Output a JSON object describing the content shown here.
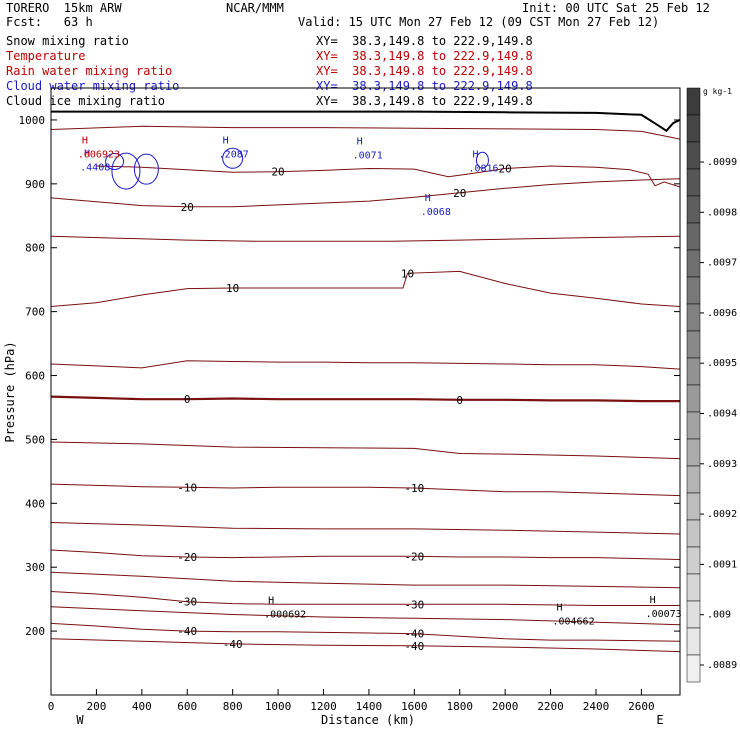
{
  "header": {
    "model": "TORERO  15km ARW",
    "source": "NCAR/MMM",
    "init": "Init: 00 UTC Sat 25 Feb 12",
    "fcst": "Fcst:   63 h",
    "valid": "Valid: 15 UTC Mon 27 Feb 12 (09 CST Mon 27 Feb 12)"
  },
  "fields": [
    {
      "label": "Snow mixing ratio",
      "color": "#000000",
      "xy": "XY=  38.3,149.8 to 222.9,149.8"
    },
    {
      "label": "Temperature",
      "color": "#c00000",
      "xy": "XY=  38.3,149.8 to 222.9,149.8"
    },
    {
      "label": "Rain water mixing ratio",
      "color": "#c00000",
      "xy": "XY=  38.3,149.8 to 222.9,149.8"
    },
    {
      "label": "Cloud water mixing ratio",
      "color": "#1a1acc",
      "xy": "XY=  38.3,149.8 to 222.9,149.8"
    },
    {
      "label": "Cloud ice mixing ratio",
      "color": "#000000",
      "xy": "XY=  38.3,149.8 to 222.9,149.8"
    }
  ],
  "chart_data": {
    "type": "contour",
    "xlabel": "Distance (km)",
    "ylabel": "Pressure (hPa)",
    "xlim": [
      0,
      2770
    ],
    "ylim": [
      1050,
      100
    ],
    "x_ticks": [
      0,
      200,
      400,
      600,
      800,
      1000,
      1200,
      1400,
      1600,
      1800,
      2000,
      2200,
      2400,
      2600
    ],
    "y_ticks": [
      200,
      300,
      400,
      500,
      600,
      700,
      800,
      900,
      1000
    ],
    "x_end_labels": {
      "left": "W",
      "right": "E"
    },
    "colors": {
      "temperature": "#7a1010",
      "cloud_water": "#1a1acc",
      "terrain": "#000000"
    },
    "temperature_contours": [
      {
        "level": -40,
        "label": "-40",
        "points": [
          [
            0,
            188
          ],
          [
            400,
            184
          ],
          [
            800,
            180
          ],
          [
            1200,
            178
          ],
          [
            1600,
            177
          ],
          [
            2000,
            175
          ],
          [
            2400,
            172
          ],
          [
            2770,
            168
          ]
        ]
      },
      {
        "level": -40,
        "label": "-40",
        "points": [
          [
            0,
            212
          ],
          [
            200,
            208
          ],
          [
            400,
            203
          ],
          [
            600,
            200
          ],
          [
            800,
            199
          ],
          [
            1000,
            199
          ],
          [
            1200,
            198
          ],
          [
            1400,
            197
          ],
          [
            1600,
            196
          ],
          [
            1800,
            192
          ],
          [
            2000,
            188
          ],
          [
            2200,
            186
          ],
          [
            2400,
            186
          ],
          [
            2770,
            184
          ]
        ]
      },
      {
        "level": -35,
        "label": "",
        "points": [
          [
            0,
            238
          ],
          [
            400,
            232
          ],
          [
            800,
            226
          ],
          [
            1200,
            222
          ],
          [
            1600,
            220
          ],
          [
            2000,
            218
          ],
          [
            2400,
            214
          ],
          [
            2770,
            210
          ]
        ]
      },
      {
        "level": -30,
        "label": "-30",
        "points": [
          [
            0,
            262
          ],
          [
            200,
            258
          ],
          [
            400,
            253
          ],
          [
            600,
            246
          ],
          [
            800,
            243
          ],
          [
            1000,
            242
          ],
          [
            1200,
            242
          ],
          [
            1400,
            242
          ],
          [
            1600,
            242
          ],
          [
            1800,
            242
          ],
          [
            2000,
            242
          ],
          [
            2200,
            241
          ],
          [
            2400,
            240
          ],
          [
            2770,
            240
          ]
        ]
      },
      {
        "level": -25,
        "label": "",
        "points": [
          [
            0,
            292
          ],
          [
            400,
            286
          ],
          [
            800,
            278
          ],
          [
            1200,
            275
          ],
          [
            1600,
            272
          ],
          [
            2000,
            272
          ],
          [
            2400,
            270
          ],
          [
            2770,
            268
          ]
        ]
      },
      {
        "level": -20,
        "label": "-20",
        "points": [
          [
            0,
            327
          ],
          [
            200,
            323
          ],
          [
            400,
            318
          ],
          [
            600,
            316
          ],
          [
            800,
            315
          ],
          [
            1000,
            316
          ],
          [
            1200,
            317
          ],
          [
            1400,
            317
          ],
          [
            1600,
            317
          ],
          [
            1800,
            316
          ],
          [
            2000,
            316
          ],
          [
            2200,
            315
          ],
          [
            2400,
            315
          ],
          [
            2770,
            312
          ]
        ]
      },
      {
        "level": -15,
        "label": "",
        "points": [
          [
            0,
            370
          ],
          [
            400,
            366
          ],
          [
            800,
            361
          ],
          [
            1200,
            360
          ],
          [
            1600,
            360
          ],
          [
            2000,
            358
          ],
          [
            2400,
            355
          ],
          [
            2770,
            352
          ]
        ]
      },
      {
        "level": -10,
        "label": "-10",
        "points": [
          [
            0,
            430
          ],
          [
            200,
            428
          ],
          [
            400,
            426
          ],
          [
            600,
            425
          ],
          [
            800,
            424
          ],
          [
            1000,
            425
          ],
          [
            1200,
            425
          ],
          [
            1400,
            425
          ],
          [
            1600,
            424
          ],
          [
            1800,
            421
          ],
          [
            2000,
            418
          ],
          [
            2200,
            418
          ],
          [
            2400,
            416
          ],
          [
            2770,
            412
          ]
        ]
      },
      {
        "level": -5,
        "label": "",
        "points": [
          [
            0,
            496
          ],
          [
            400,
            493
          ],
          [
            800,
            488
          ],
          [
            1200,
            487
          ],
          [
            1600,
            486
          ],
          [
            1800,
            478
          ],
          [
            2000,
            477
          ],
          [
            2400,
            474
          ],
          [
            2770,
            470
          ]
        ]
      },
      {
        "level": 0,
        "label": "0",
        "points": [
          [
            0,
            567
          ],
          [
            200,
            565
          ],
          [
            400,
            563
          ],
          [
            600,
            563
          ],
          [
            800,
            564
          ],
          [
            1000,
            563
          ],
          [
            1200,
            563
          ],
          [
            1400,
            563
          ],
          [
            1600,
            563
          ],
          [
            1800,
            562
          ],
          [
            2000,
            562
          ],
          [
            2200,
            561
          ],
          [
            2400,
            561
          ],
          [
            2600,
            560
          ],
          [
            2770,
            560
          ]
        ]
      },
      {
        "level": 5,
        "label": "",
        "points": [
          [
            0,
            618
          ],
          [
            200,
            615
          ],
          [
            400,
            612
          ],
          [
            600,
            623
          ],
          [
            800,
            622
          ],
          [
            1000,
            621
          ],
          [
            1200,
            621
          ],
          [
            1400,
            620
          ],
          [
            1600,
            620
          ],
          [
            1800,
            619
          ],
          [
            2000,
            618
          ],
          [
            2200,
            617
          ],
          [
            2400,
            617
          ],
          [
            2600,
            614
          ],
          [
            2770,
            610
          ]
        ]
      },
      {
        "level": 10,
        "label": "10",
        "points": [
          [
            0,
            708
          ],
          [
            200,
            714
          ],
          [
            400,
            726
          ],
          [
            600,
            736
          ],
          [
            800,
            737
          ],
          [
            1000,
            737
          ],
          [
            1200,
            737
          ],
          [
            1400,
            737
          ],
          [
            1550,
            737
          ],
          [
            1570,
            760
          ],
          [
            1800,
            763
          ],
          [
            2000,
            744
          ],
          [
            2200,
            729
          ],
          [
            2400,
            721
          ],
          [
            2600,
            712
          ],
          [
            2770,
            708
          ]
        ]
      },
      {
        "level": 15,
        "label": "",
        "points": [
          [
            0,
            818
          ],
          [
            300,
            815
          ],
          [
            600,
            812
          ],
          [
            900,
            810
          ],
          [
            1200,
            810
          ],
          [
            1500,
            810
          ],
          [
            1800,
            812
          ],
          [
            2100,
            814
          ],
          [
            2400,
            816
          ],
          [
            2770,
            818
          ]
        ]
      },
      {
        "level": 20,
        "label": "20",
        "points": [
          [
            0,
            878
          ],
          [
            200,
            872
          ],
          [
            400,
            866
          ],
          [
            600,
            864
          ],
          [
            800,
            864
          ],
          [
            1000,
            867
          ],
          [
            1200,
            870
          ],
          [
            1400,
            873
          ],
          [
            1600,
            879
          ],
          [
            1800,
            886
          ],
          [
            2000,
            893
          ],
          [
            2200,
            899
          ],
          [
            2400,
            903
          ],
          [
            2600,
            906
          ],
          [
            2770,
            908
          ]
        ]
      },
      {
        "level": 20,
        "label": "20",
        "points": [
          [
            200,
            928
          ],
          [
            400,
            926
          ],
          [
            600,
            922
          ],
          [
            800,
            918
          ],
          [
            1000,
            919
          ],
          [
            1200,
            921
          ],
          [
            1400,
            924
          ],
          [
            1600,
            923
          ],
          [
            1750,
            911
          ],
          [
            1850,
            916
          ],
          [
            2000,
            924
          ],
          [
            2200,
            928
          ],
          [
            2400,
            926
          ],
          [
            2550,
            922
          ],
          [
            2630,
            915
          ],
          [
            2660,
            897
          ],
          [
            2700,
            903
          ],
          [
            2770,
            895
          ]
        ]
      },
      {
        "level": 25,
        "label": "",
        "points": [
          [
            0,
            985
          ],
          [
            400,
            990
          ],
          [
            800,
            988
          ],
          [
            1200,
            988
          ],
          [
            1600,
            987
          ],
          [
            2000,
            986
          ],
          [
            2400,
            985
          ],
          [
            2600,
            982
          ],
          [
            2700,
            975
          ],
          [
            2770,
            970
          ]
        ]
      }
    ],
    "cloud_water_labels": [
      {
        "x": 190,
        "p": 921,
        "text": ".4408"
      },
      {
        "x": 800,
        "p": 941,
        "text": ".2087"
      },
      {
        "x": 1390,
        "p": 940,
        "text": ".0071"
      },
      {
        "x": 1690,
        "p": 851,
        "text": ".0068"
      },
      {
        "x": 1900,
        "p": 919,
        "text": ".0816"
      }
    ],
    "rain_water_labels": [
      {
        "x": 180,
        "p": 941,
        "text": ".006923"
      }
    ],
    "ice_labels": [
      {
        "x": 1000,
        "p": 221,
        "text": ".000692"
      },
      {
        "x": 2270,
        "p": 210,
        "text": ".004662"
      },
      {
        "x": 2680,
        "p": 222,
        "text": ".00073"
      }
    ],
    "terrain": [
      [
        0,
        1013
      ],
      [
        800,
        1013
      ],
      [
        1600,
        1013
      ],
      [
        2000,
        1012
      ],
      [
        2400,
        1011
      ],
      [
        2600,
        1008
      ],
      [
        2680,
        990
      ],
      [
        2710,
        983
      ],
      [
        2740,
        995
      ],
      [
        2770,
        1000
      ]
    ],
    "colorbar": {
      "unit": "g kg-1",
      "labels": [
        ".0099",
        ".0098",
        ".0097",
        ".0096",
        ".0095",
        ".0094",
        ".0093",
        ".0092",
        ".0091",
        ".009",
        ".0089"
      ]
    }
  }
}
